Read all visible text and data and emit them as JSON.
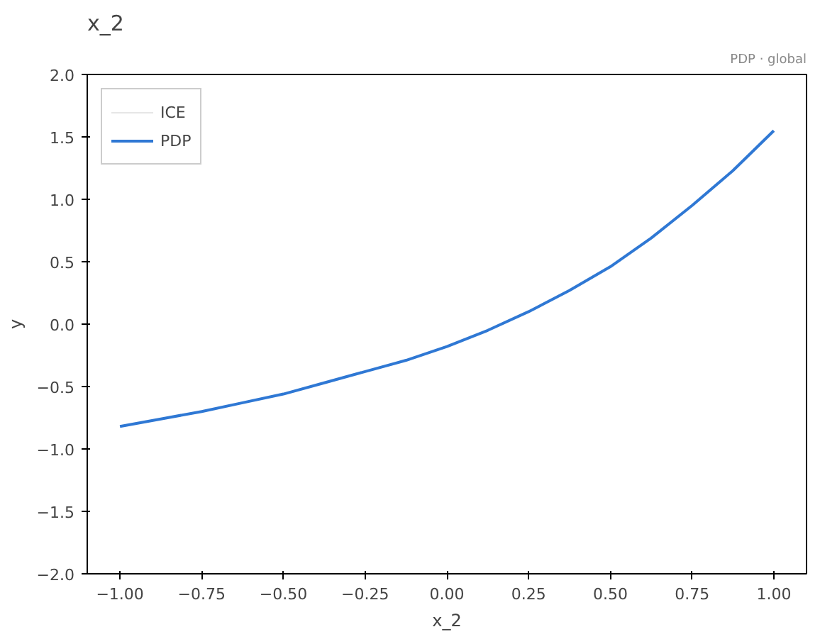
{
  "chart_data": {
    "type": "line",
    "title": "x_2",
    "xlabel": "x_2",
    "ylabel": "y",
    "annotations": [
      "PDP · global"
    ],
    "x": [
      -1,
      -0.875,
      -0.75,
      -0.625,
      -0.5,
      -0.375,
      -0.25,
      -0.125,
      0,
      0.125,
      0.25,
      0.375,
      0.5,
      0.625,
      0.75,
      0.875,
      1
    ],
    "series": [
      {
        "name": "ICE",
        "color": "#e6e6e6",
        "values": [
          null,
          null,
          null,
          null,
          null,
          null,
          null,
          null,
          null,
          null,
          null,
          null,
          null,
          null,
          null,
          null,
          null
        ]
      },
      {
        "name": "PDP",
        "color": "#2f78d4",
        "values": [
          -0.82,
          -0.76,
          -0.7,
          -0.63,
          -0.56,
          -0.47,
          -0.38,
          -0.29,
          -0.18,
          -0.05,
          0.1,
          0.27,
          0.46,
          0.69,
          0.95,
          1.23,
          1.55
        ]
      }
    ],
    "xlim": [
      -1.1,
      1.1
    ],
    "ylim": [
      -2,
      2
    ],
    "xticks": [
      {
        "value": -1,
        "label": "−1.00"
      },
      {
        "value": -0.75,
        "label": "−0.75"
      },
      {
        "value": -0.5,
        "label": "−0.50"
      },
      {
        "value": -0.25,
        "label": "−0.25"
      },
      {
        "value": 0,
        "label": "0.00"
      },
      {
        "value": 0.25,
        "label": "0.25"
      },
      {
        "value": 0.5,
        "label": "0.50"
      },
      {
        "value": 0.75,
        "label": "0.75"
      },
      {
        "value": 1,
        "label": "1.00"
      }
    ],
    "yticks": [
      {
        "value": -2,
        "label": "−2.0"
      },
      {
        "value": -1.5,
        "label": "−1.5"
      },
      {
        "value": -1,
        "label": "−1.0"
      },
      {
        "value": -0.5,
        "label": "−0.5"
      },
      {
        "value": 0,
        "label": "0.0"
      },
      {
        "value": 0.5,
        "label": "0.5"
      },
      {
        "value": 1,
        "label": "1.0"
      },
      {
        "value": 1.5,
        "label": "1.5"
      },
      {
        "value": 2,
        "label": "2.0"
      }
    ],
    "grid": false,
    "legend": "top left",
    "line_style": "solid",
    "marker": "none"
  }
}
